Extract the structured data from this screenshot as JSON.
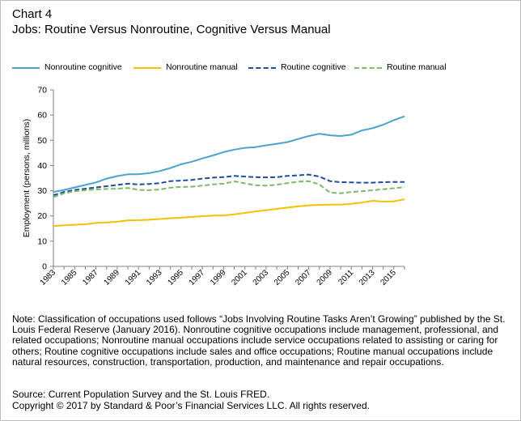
{
  "header": {
    "chart_label": "Chart 4",
    "subtitle": "Jobs: Routine Versus Nonroutine, Cognitive Versus Manual"
  },
  "colors": {
    "nonroutine_cognitive": "#4aa3cf",
    "nonroutine_manual": "#f5c000",
    "routine_cognitive": "#1f4e9c",
    "routine_manual": "#7cb96a",
    "axis": "#808080",
    "frame": "#bdbdbd"
  },
  "chart_data": {
    "type": "line",
    "ylabel": "Employment (persons, millions)",
    "xlabel": "",
    "ylim": [
      0,
      70
    ],
    "yticks": [
      0,
      10,
      20,
      30,
      40,
      50,
      60,
      70
    ],
    "xticks": [
      "1983",
      "1985",
      "1987",
      "1989",
      "1991",
      "1993",
      "1995",
      "1997",
      "1999",
      "2001",
      "2003",
      "2005",
      "2007",
      "2009",
      "2011",
      "2013",
      "2015"
    ],
    "x": [
      1983,
      1984,
      1985,
      1986,
      1987,
      1988,
      1989,
      1990,
      1991,
      1992,
      1993,
      1994,
      1995,
      1996,
      1997,
      1998,
      1999,
      2000,
      2001,
      2002,
      2003,
      2004,
      2005,
      2006,
      2007,
      2008,
      2009,
      2010,
      2011,
      2012,
      2013,
      2014,
      2015,
      2016
    ],
    "grid": false,
    "legend": "top",
    "series": [
      {
        "name": "Nonroutine cognitive",
        "style": "solid",
        "values": [
          29.5,
          30.3,
          31.3,
          32.3,
          33.3,
          34.8,
          35.8,
          36.5,
          36.5,
          37.0,
          37.8,
          39.0,
          40.5,
          41.5,
          42.8,
          44.0,
          45.3,
          46.3,
          47.0,
          47.3,
          48.0,
          48.6,
          49.3,
          50.5,
          51.7,
          52.6,
          52.0,
          51.7,
          52.2,
          53.9,
          54.8,
          56.2,
          58.0,
          59.5
        ]
      },
      {
        "name": "Nonroutine manual",
        "style": "solid",
        "values": [
          16.0,
          16.3,
          16.5,
          16.7,
          17.2,
          17.4,
          17.7,
          18.2,
          18.3,
          18.5,
          18.8,
          19.1,
          19.3,
          19.6,
          19.9,
          20.1,
          20.2,
          20.6,
          21.2,
          21.8,
          22.3,
          22.8,
          23.3,
          23.8,
          24.2,
          24.4,
          24.5,
          24.5,
          24.8,
          25.3,
          26.0,
          25.7,
          25.8,
          26.6
        ]
      },
      {
        "name": "Routine cognitive",
        "style": "dashed",
        "values": [
          28.2,
          29.5,
          30.3,
          30.8,
          31.3,
          31.8,
          32.3,
          32.8,
          32.5,
          32.7,
          33.0,
          33.8,
          34.0,
          34.3,
          34.8,
          35.2,
          35.4,
          35.9,
          35.6,
          35.4,
          35.3,
          35.4,
          35.9,
          36.1,
          36.4,
          35.6,
          33.8,
          33.4,
          33.3,
          33.2,
          33.2,
          33.4,
          33.5,
          33.5
        ]
      },
      {
        "name": "Routine manual",
        "style": "dashed",
        "values": [
          27.5,
          29.0,
          29.8,
          30.2,
          30.5,
          30.7,
          30.8,
          31.1,
          30.3,
          30.2,
          30.5,
          31.2,
          31.5,
          31.6,
          32.0,
          32.5,
          32.8,
          33.7,
          32.9,
          32.2,
          32.0,
          32.4,
          33.0,
          33.6,
          33.8,
          32.5,
          29.3,
          29.0,
          29.5,
          29.8,
          30.2,
          30.6,
          31.0,
          31.4
        ]
      }
    ]
  },
  "note": "Note: Classification of occupations used follows “Jobs Involving Routine Tasks Aren’t Growing” published by the St. Louis Federal Reserve (January 2016). Nonroutine cognitive occupations include management, professional, and related occupations; Nonroutine manual occupations include service occupations related to assisting or caring for others; Routine cognitive occupations include sales and office occupations; Routine manual occupations include natural resources, construction, transportation, production, and maintenance and repair occupations.",
  "source_line": "Source: Current Population Survey and the St. Louis FRED.",
  "copyright_line": "Copyright © 2017 by Standard & Poor’s Financial Services LLC. All rights reserved."
}
